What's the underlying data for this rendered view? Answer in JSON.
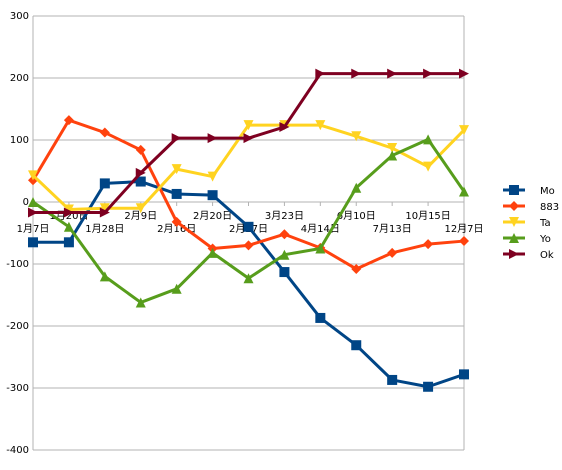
{
  "chart_data": {
    "type": "line",
    "categories": [
      "1月7日",
      "1月20日",
      "1月28日",
      "2月9日",
      "2月16日",
      "2月20日",
      "2月27日",
      "3月23日",
      "4月14日",
      "6月10日",
      "7月13日",
      "10月15日",
      "12月7日"
    ],
    "ylim": [
      -400,
      300
    ],
    "yticks": [
      -400,
      -300,
      -200,
      -100,
      0,
      100,
      200,
      300
    ],
    "grid": true,
    "legend_position": "right",
    "series": [
      {
        "name": "Mo",
        "color": "#004586",
        "marker": "square",
        "values": [
          -65,
          -65,
          30,
          33,
          13,
          11,
          -40,
          -113,
          -187,
          -231,
          -287,
          -298,
          -278
        ]
      },
      {
        "name": "883",
        "color": "#ff420e",
        "marker": "diamond",
        "values": [
          35,
          132,
          112,
          84,
          -32,
          -75,
          -70,
          -52,
          -74,
          -108,
          -82,
          -68,
          -63
        ]
      },
      {
        "name": "Ta",
        "color": "#ffd320",
        "marker": "triangle-down",
        "values": [
          43,
          -12,
          -10,
          -10,
          53,
          41,
          124,
          124,
          124,
          106,
          87,
          57,
          116
        ]
      },
      {
        "name": "Yo",
        "color": "#579d1c",
        "marker": "triangle-up",
        "values": [
          0,
          -40,
          -120,
          -162,
          -140,
          -82,
          -123,
          -85,
          -75,
          23,
          75,
          101,
          17
        ]
      },
      {
        "name": "Ok",
        "color": "#7e0021",
        "marker": "triangle-right",
        "values": [
          -17,
          -17,
          -17,
          47,
          103,
          103,
          103,
          121,
          207,
          207,
          207,
          207,
          207
        ]
      }
    ]
  }
}
